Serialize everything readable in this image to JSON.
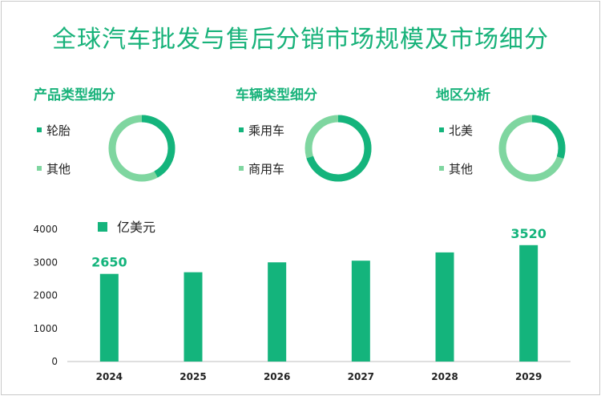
{
  "title": "全球汽车批发与售后分销市场规模及市场细分",
  "colors": {
    "primary": "#14b47c",
    "light": "#7fd6a0",
    "title": "#18b27a"
  },
  "segments": [
    {
      "title": "产品类型细分",
      "legend": [
        {
          "label": "轮胎",
          "share": 0.42
        },
        {
          "label": "其他",
          "share": 0.58
        }
      ]
    },
    {
      "title": "车辆类型细分",
      "legend": [
        {
          "label": "乘用车",
          "share": 0.7
        },
        {
          "label": "商用车",
          "share": 0.3
        }
      ]
    },
    {
      "title": "地区分析",
      "legend": [
        {
          "label": "北美",
          "share": 0.3
        },
        {
          "label": "其他",
          "share": 0.7
        }
      ]
    }
  ],
  "chart_data": {
    "type": "bar",
    "title": "",
    "legend": "亿美元",
    "categories": [
      "2024",
      "2025",
      "2026",
      "2027",
      "2028",
      "2029"
    ],
    "values": [
      2650,
      2700,
      3000,
      3050,
      3300,
      3520
    ],
    "data_labels": {
      "2024": "2650",
      "2029": "3520"
    },
    "yticks": [
      "0",
      "1000",
      "2000",
      "3000",
      "4000"
    ],
    "ylim": [
      0,
      4000
    ],
    "grid": false
  }
}
